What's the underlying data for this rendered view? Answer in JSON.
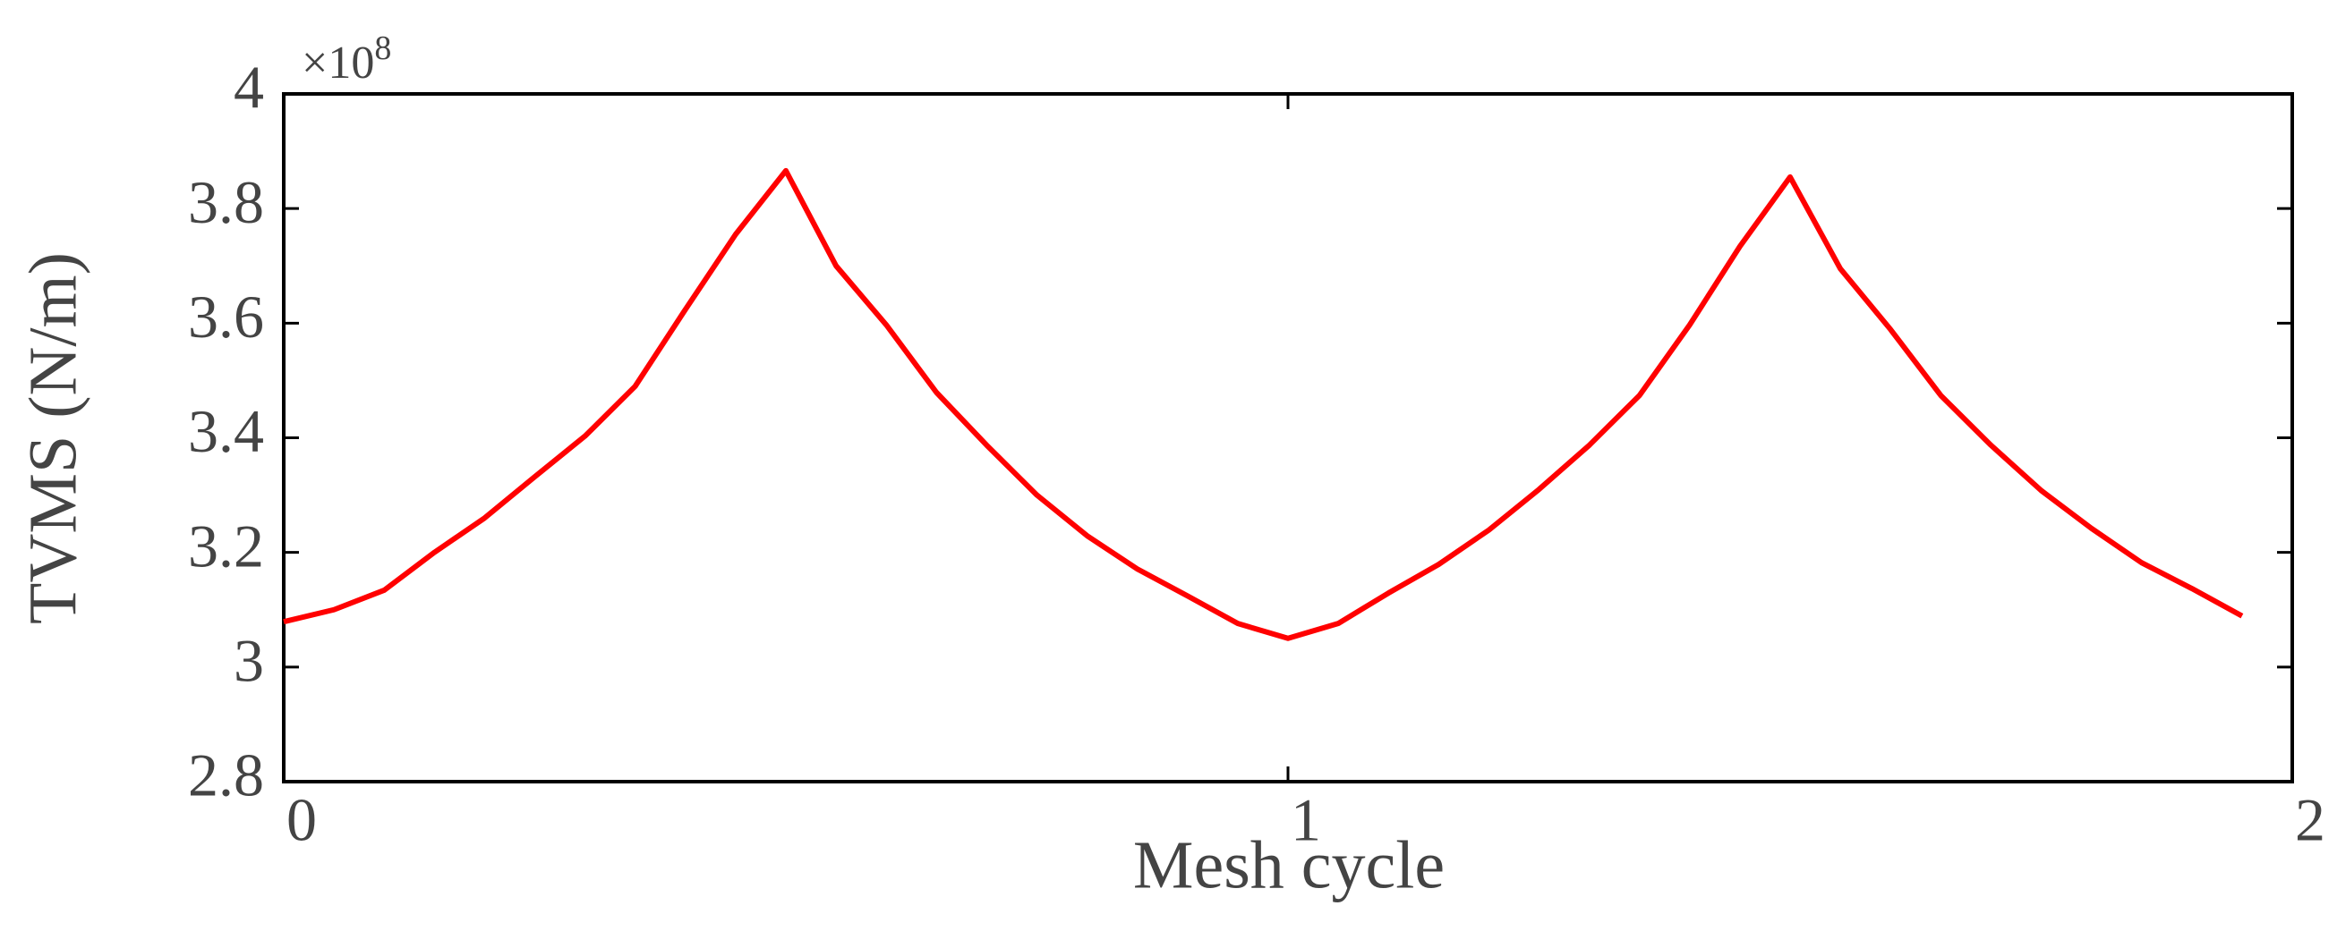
{
  "chart_data": {
    "type": "line",
    "x_label": "Mesh cycle",
    "y_label": "TVMS (N/m)",
    "y_exponent": {
      "base": "×10",
      "power": "8"
    },
    "x": [
      0,
      0.05,
      0.1,
      0.15,
      0.2,
      0.25,
      0.3,
      0.35,
      0.4,
      0.45,
      0.5,
      0.55,
      0.6,
      0.65,
      0.7,
      0.75,
      0.8,
      0.85,
      0.9,
      0.95,
      1.0,
      1.05,
      1.1,
      1.15,
      1.2,
      1.25,
      1.3,
      1.35,
      1.4,
      1.45,
      1.5,
      1.55,
      1.6,
      1.65,
      1.7,
      1.75,
      1.8,
      1.85,
      1.9,
      1.95
    ],
    "series": [
      {
        "color": "#ff0000",
        "values": [
          3.079,
          3.1,
          3.134,
          3.2,
          3.26,
          3.332,
          3.403,
          3.49,
          3.624,
          3.755,
          3.866,
          3.7,
          3.597,
          3.479,
          3.387,
          3.3,
          3.229,
          3.171,
          3.124,
          3.076,
          3.05,
          3.076,
          3.129,
          3.179,
          3.239,
          3.31,
          3.387,
          3.474,
          3.597,
          3.734,
          3.855,
          3.695,
          3.589,
          3.474,
          3.387,
          3.308,
          3.242,
          3.182,
          3.137,
          3.089
        ]
      }
    ],
    "xlim": [
      0,
      2
    ],
    "xticks": [
      0,
      1,
      2
    ],
    "ylim": [
      2.8,
      4
    ],
    "yticks": [
      2.8,
      3,
      3.2,
      3.4,
      3.6,
      3.8,
      4
    ],
    "grid": false
  }
}
